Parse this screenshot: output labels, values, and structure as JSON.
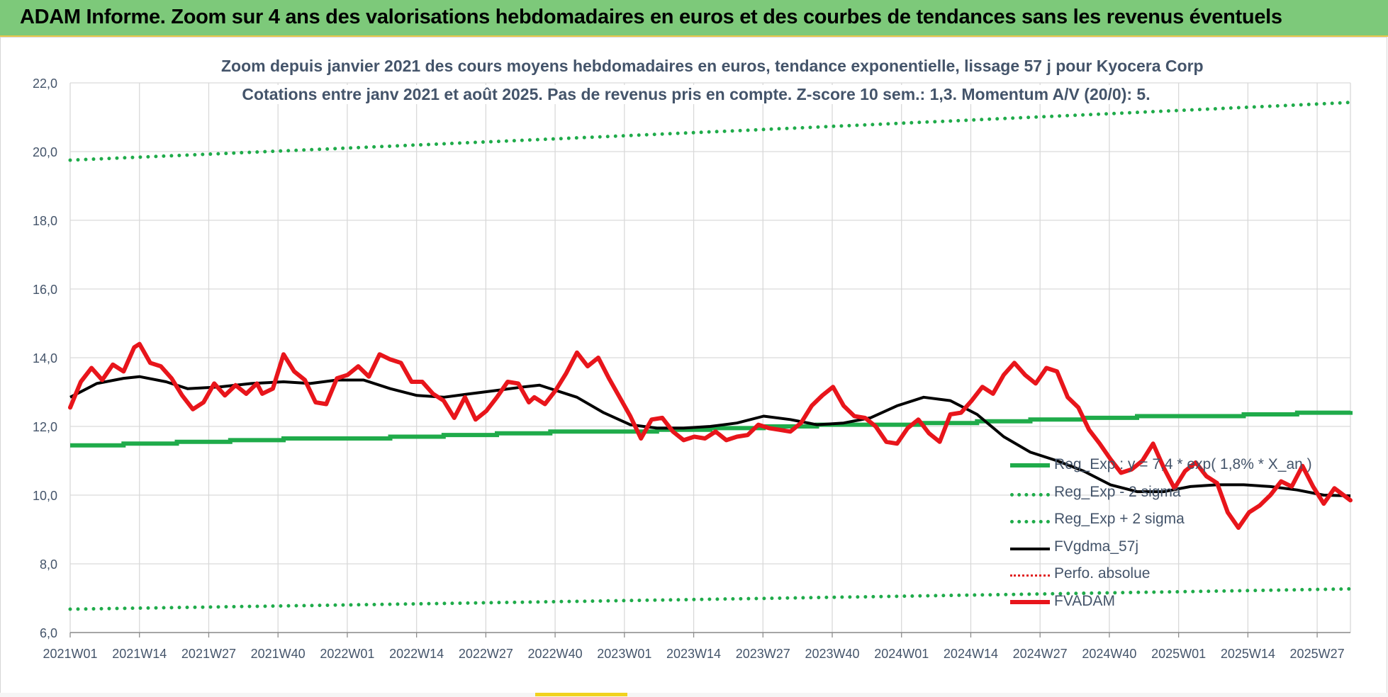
{
  "banner": {
    "title": "ADAM Informe. Zoom sur 4 ans des valorisations hebdomadaires en euros et des courbes de tendances sans les revenus éventuels"
  },
  "colors": {
    "banner_bg": "#7dc97a",
    "reg_exp": "#1fab4a",
    "sigma": "#1fab4a",
    "fvgdma": "#000000",
    "perfo": "#e02020",
    "fvadam": "#e8151b",
    "grid": "#d9d9d9",
    "text": "#44546a"
  },
  "chart_data": {
    "type": "line",
    "title_line1": "Zoom depuis janvier 2021 des cours moyens hebdomadaires en euros, tendance exponentielle, lissage 57 j pour Kyocera Corp",
    "title_line2": "Cotations entre janv 2021 et août 2025.  Pas de revenus pris en compte. Z-score 10 sem.: 1,3. Momentum A/V (20/0): 5.",
    "ylim": [
      6,
      22
    ],
    "y_ticks": [
      "6,0",
      "8,0",
      "10,0",
      "12,0",
      "14,0",
      "16,0",
      "18,0",
      "20,0",
      "22,0"
    ],
    "x_ticks": [
      "2021W01",
      "2021W14",
      "2021W27",
      "2021W40",
      "2022W01",
      "2022W14",
      "2022W27",
      "2022W40",
      "2023W01",
      "2023W14",
      "2023W27",
      "2023W40",
      "2024W01",
      "2024W14",
      "2024W27",
      "2024W40",
      "2025W01",
      "2025W14",
      "2025W27"
    ],
    "x_range_weeks": [
      0,
      240
    ],
    "grid": "vertical and horizontal",
    "legend_position": "bottom-right",
    "series": [
      {
        "name": "Reg_Exp : y = 7,4 * exp( 1,8% *  X_an )",
        "style": "solid-green-thick",
        "x": [
          0,
          240
        ],
        "y": [
          11.47,
          12.45
        ]
      },
      {
        "name": "Reg_Exp - 2 sigma",
        "style": "dotted-green",
        "x": [
          0,
          240
        ],
        "y": [
          6.68,
          7.27
        ]
      },
      {
        "name": "Reg_Exp + 2 sigma",
        "style": "dotted-green",
        "x": [
          0,
          240
        ],
        "y": [
          19.75,
          21.43
        ]
      },
      {
        "name": "FVgdma_57j",
        "style": "solid-black",
        "x": [
          0,
          5,
          10,
          13,
          18,
          22,
          28,
          34,
          40,
          45,
          50,
          55,
          60,
          65,
          70,
          75,
          80,
          85,
          88,
          95,
          100,
          105,
          110,
          115,
          120,
          125,
          130,
          135,
          140,
          145,
          150,
          155,
          160,
          165,
          170,
          175,
          180,
          185,
          190,
          195,
          200,
          205,
          210,
          215,
          220,
          225,
          230,
          235,
          240
        ],
        "y": [
          12.85,
          13.25,
          13.4,
          13.45,
          13.3,
          13.1,
          13.15,
          13.25,
          13.3,
          13.25,
          13.35,
          13.35,
          13.1,
          12.9,
          12.85,
          12.95,
          13.05,
          13.15,
          13.2,
          12.85,
          12.4,
          12.05,
          11.95,
          11.95,
          12.0,
          12.1,
          12.3,
          12.2,
          12.05,
          12.1,
          12.25,
          12.6,
          12.85,
          12.75,
          12.35,
          11.7,
          11.25,
          11.0,
          10.7,
          10.3,
          10.1,
          10.1,
          10.25,
          10.3,
          10.3,
          10.25,
          10.15,
          10.0,
          9.98
        ]
      },
      {
        "name": "Perfo. absolue",
        "style": "dotted-red",
        "x": [],
        "y": []
      },
      {
        "name": "FVADAM",
        "style": "solid-red-thick",
        "x": [
          0,
          2,
          4,
          6,
          8,
          10,
          12,
          13,
          15,
          17,
          19,
          21,
          23,
          25,
          27,
          29,
          31,
          33,
          35,
          36,
          38,
          40,
          42,
          44,
          46,
          48,
          50,
          52,
          54,
          56,
          58,
          60,
          62,
          64,
          66,
          68,
          70,
          72,
          74,
          76,
          78,
          80,
          82,
          84,
          86,
          87,
          89,
          91,
          93,
          95,
          97,
          99,
          101,
          103,
          105,
          107,
          109,
          111,
          113,
          115,
          117,
          119,
          121,
          123,
          125,
          127,
          129,
          131,
          133,
          135,
          137,
          139,
          141,
          143,
          145,
          147,
          149,
          151,
          153,
          155,
          157,
          159,
          161,
          163,
          165,
          167,
          169,
          171,
          173,
          175,
          177,
          179,
          181,
          183,
          185,
          187,
          189,
          191,
          193,
          195,
          197,
          199,
          201,
          203,
          205,
          207,
          209,
          211,
          213,
          215,
          217,
          219,
          221,
          223,
          225,
          227,
          229,
          231,
          233,
          235,
          237,
          240
        ],
        "y": [
          12.55,
          13.3,
          13.7,
          13.35,
          13.8,
          13.6,
          14.3,
          14.4,
          13.85,
          13.75,
          13.4,
          12.9,
          12.5,
          12.7,
          13.25,
          12.9,
          13.2,
          12.95,
          13.25,
          12.95,
          13.1,
          14.1,
          13.6,
          13.35,
          12.7,
          12.65,
          13.4,
          13.5,
          13.75,
          13.45,
          14.1,
          13.95,
          13.85,
          13.3,
          13.3,
          12.95,
          12.75,
          12.25,
          12.85,
          12.2,
          12.45,
          12.85,
          13.3,
          13.25,
          12.7,
          12.85,
          12.65,
          13.05,
          13.55,
          14.15,
          13.75,
          14.0,
          13.4,
          12.85,
          12.3,
          11.65,
          12.2,
          12.25,
          11.85,
          11.6,
          11.7,
          11.65,
          11.85,
          11.6,
          11.7,
          11.75,
          12.05,
          11.95,
          11.9,
          11.85,
          12.1,
          12.6,
          12.9,
          13.15,
          12.6,
          12.3,
          12.25,
          12.0,
          11.55,
          11.5,
          11.95,
          12.2,
          11.8,
          11.55,
          12.35,
          12.4,
          12.75,
          13.15,
          12.95,
          13.5,
          13.85,
          13.5,
          13.25,
          13.7,
          13.6,
          12.85,
          12.55,
          11.9,
          11.5,
          11.05,
          10.65,
          10.75,
          11.0,
          11.5,
          10.8,
          10.2,
          10.7,
          10.95,
          10.55,
          10.35,
          9.5,
          9.05,
          9.5,
          9.7,
          10.0,
          10.4,
          10.25,
          10.85,
          10.25,
          9.75,
          10.2,
          9.85
        ]
      }
    ]
  }
}
